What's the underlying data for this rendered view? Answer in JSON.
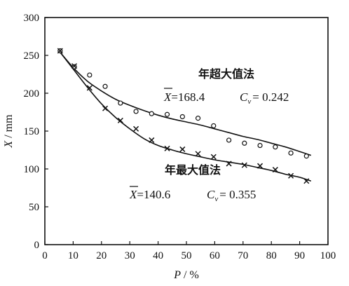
{
  "chart_data": {
    "type": "scatter",
    "xlabel_var": "P",
    "xlabel_unit": "/ %",
    "ylabel_var": "X",
    "ylabel_unit": "/ mm",
    "xlim": [
      0,
      100
    ],
    "ylim": [
      0,
      300
    ],
    "xticks": [
      "0",
      "10",
      "20",
      "30",
      "40",
      "50",
      "60",
      "70",
      "80",
      "90",
      "100"
    ],
    "yticks": [
      "0",
      "50",
      "100",
      "150",
      "200",
      "250",
      "300"
    ],
    "grid": false,
    "series": [
      {
        "name": "年超大值法",
        "marker": "circle",
        "x": [
          5.4,
          10.4,
          15.8,
          21.3,
          26.7,
          32.2,
          37.7,
          43.2,
          48.6,
          54.1,
          59.6,
          65.0,
          70.5,
          76.0,
          81.4,
          86.9,
          92.4
        ],
        "y": [
          256,
          235,
          224,
          209,
          187,
          176,
          173,
          172,
          169,
          167,
          157,
          138,
          134,
          131,
          129,
          121,
          117
        ],
        "fit_x": [
          5,
          10,
          15,
          20,
          25,
          30,
          35,
          40,
          45,
          50,
          55,
          60,
          65,
          70,
          75,
          80,
          85,
          90,
          94
        ],
        "fit_y": [
          256,
          234,
          216,
          203,
          192,
          184,
          177,
          171,
          166,
          162,
          158,
          153,
          148,
          143,
          139,
          134,
          129,
          123,
          118
        ]
      },
      {
        "name": "年最大值法",
        "marker": "cross",
        "x": [
          5.4,
          10.4,
          15.8,
          21.3,
          26.7,
          32.2,
          37.7,
          43.2,
          48.6,
          54.1,
          59.6,
          65.0,
          70.5,
          76.0,
          81.4,
          86.9,
          92.4
        ],
        "y": [
          256,
          236,
          207,
          180,
          164,
          153,
          138,
          127,
          126,
          120,
          116,
          107,
          105,
          104,
          99,
          91,
          84
        ],
        "fit_x": [
          5,
          10,
          15,
          20,
          25,
          30,
          35,
          40,
          45,
          50,
          55,
          60,
          65,
          70,
          75,
          80,
          85,
          90,
          94
        ],
        "fit_y": [
          256,
          232,
          208,
          186,
          168,
          153,
          140,
          131,
          125,
          120,
          116,
          112,
          109,
          106,
          102,
          98,
          93,
          89,
          84
        ]
      }
    ],
    "annotations": [
      {
        "label": "年超大值法",
        "mean_symbol": "X",
        "mean_text": "=168.4",
        "cv_symbol": "C",
        "cv_sub": "v",
        "cv_text": "= 0.242"
      },
      {
        "label": "年最大值法",
        "mean_symbol": "X",
        "mean_text": "=140.6",
        "cv_symbol": "C",
        "cv_sub": "v",
        "cv_text": "= 0.355"
      }
    ]
  }
}
